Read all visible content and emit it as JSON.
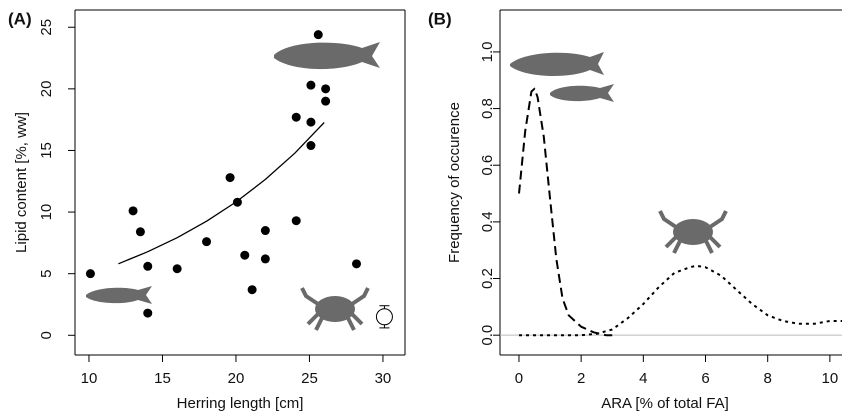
{
  "chart_data": [
    {
      "type": "scatter",
      "panel_label": "(A)",
      "x_label": "Herring length [cm]",
      "y_label": "Lipid content [%, ww]",
      "xlim": [
        9.05,
        31.5
      ],
      "ylim": [
        -1.6,
        26.4
      ],
      "xticks": [
        10,
        15,
        20,
        25,
        30
      ],
      "yticks": [
        0,
        5,
        10,
        15,
        20,
        25
      ],
      "series": [
        {
          "style": "points",
          "color": "#000000",
          "x": [
            10.1,
            13.0,
            13.5,
            14.0,
            14.0,
            16.0,
            18.0,
            19.6,
            20.1,
            20.6,
            21.1,
            22.0,
            22.0,
            24.1,
            24.1,
            25.1,
            25.1,
            25.1,
            25.6,
            26.1,
            26.1,
            28.2
          ],
          "values": [
            5.0,
            10.1,
            8.4,
            5.6,
            1.8,
            5.4,
            7.6,
            12.8,
            10.8,
            6.5,
            3.7,
            8.5,
            6.2,
            17.7,
            9.3,
            20.3,
            17.3,
            15.4,
            24.4,
            20.0,
            19.0,
            5.8
          ]
        },
        {
          "style": "line",
          "color": "#000000",
          "x": [
            12,
            14,
            16,
            18,
            20,
            22,
            24,
            26
          ],
          "values": [
            5.8,
            6.78,
            7.92,
            9.26,
            10.82,
            12.65,
            14.78,
            17.27
          ]
        }
      ],
      "error_point": {
        "x": 30.1,
        "y": 1.5,
        "error": 0.9
      }
    },
    {
      "type": "line",
      "panel_label": "(B)",
      "x_label": "ARA [% of total FA]",
      "y_label": "Frequency of occurence",
      "xlim": [
        -0.61,
        10.39
      ],
      "ylim": [
        -0.07,
        1.148
      ],
      "xticks": [
        0,
        2,
        4,
        6,
        8,
        10
      ],
      "yticks": [
        {
          "value": 0,
          "label": "0.0"
        },
        0.2,
        0.4,
        0.6,
        0.8,
        {
          "value": 1,
          "label": "1.0"
        }
      ],
      "reference_line": 0,
      "reference_color": "#bbbbbb",
      "series": [
        {
          "style": "dashed",
          "color": "#000000",
          "x": [
            0,
            0.2,
            0.4,
            0.5,
            0.6,
            0.8,
            1.0,
            1.2,
            1.4,
            1.6,
            1.8,
            2.0,
            2.4,
            2.8,
            3.0
          ],
          "values": [
            0.5,
            0.72,
            0.86,
            0.87,
            0.84,
            0.7,
            0.48,
            0.27,
            0.13,
            0.07,
            0.05,
            0.03,
            0.01,
            0.0,
            0.0
          ]
        },
        {
          "style": "dotted",
          "color": "#000000",
          "x": [
            0,
            1,
            2,
            2.5,
            3,
            3.5,
            4,
            4.5,
            5,
            5.5,
            5.7,
            6,
            6.5,
            7,
            7.5,
            8,
            8.5,
            9,
            9.5,
            10,
            10.4
          ],
          "values": [
            0,
            0,
            0,
            0.005,
            0.02,
            0.06,
            0.11,
            0.17,
            0.22,
            0.24,
            0.245,
            0.24,
            0.21,
            0.16,
            0.11,
            0.07,
            0.05,
            0.04,
            0.04,
            0.05,
            0.05
          ]
        }
      ]
    }
  ]
}
